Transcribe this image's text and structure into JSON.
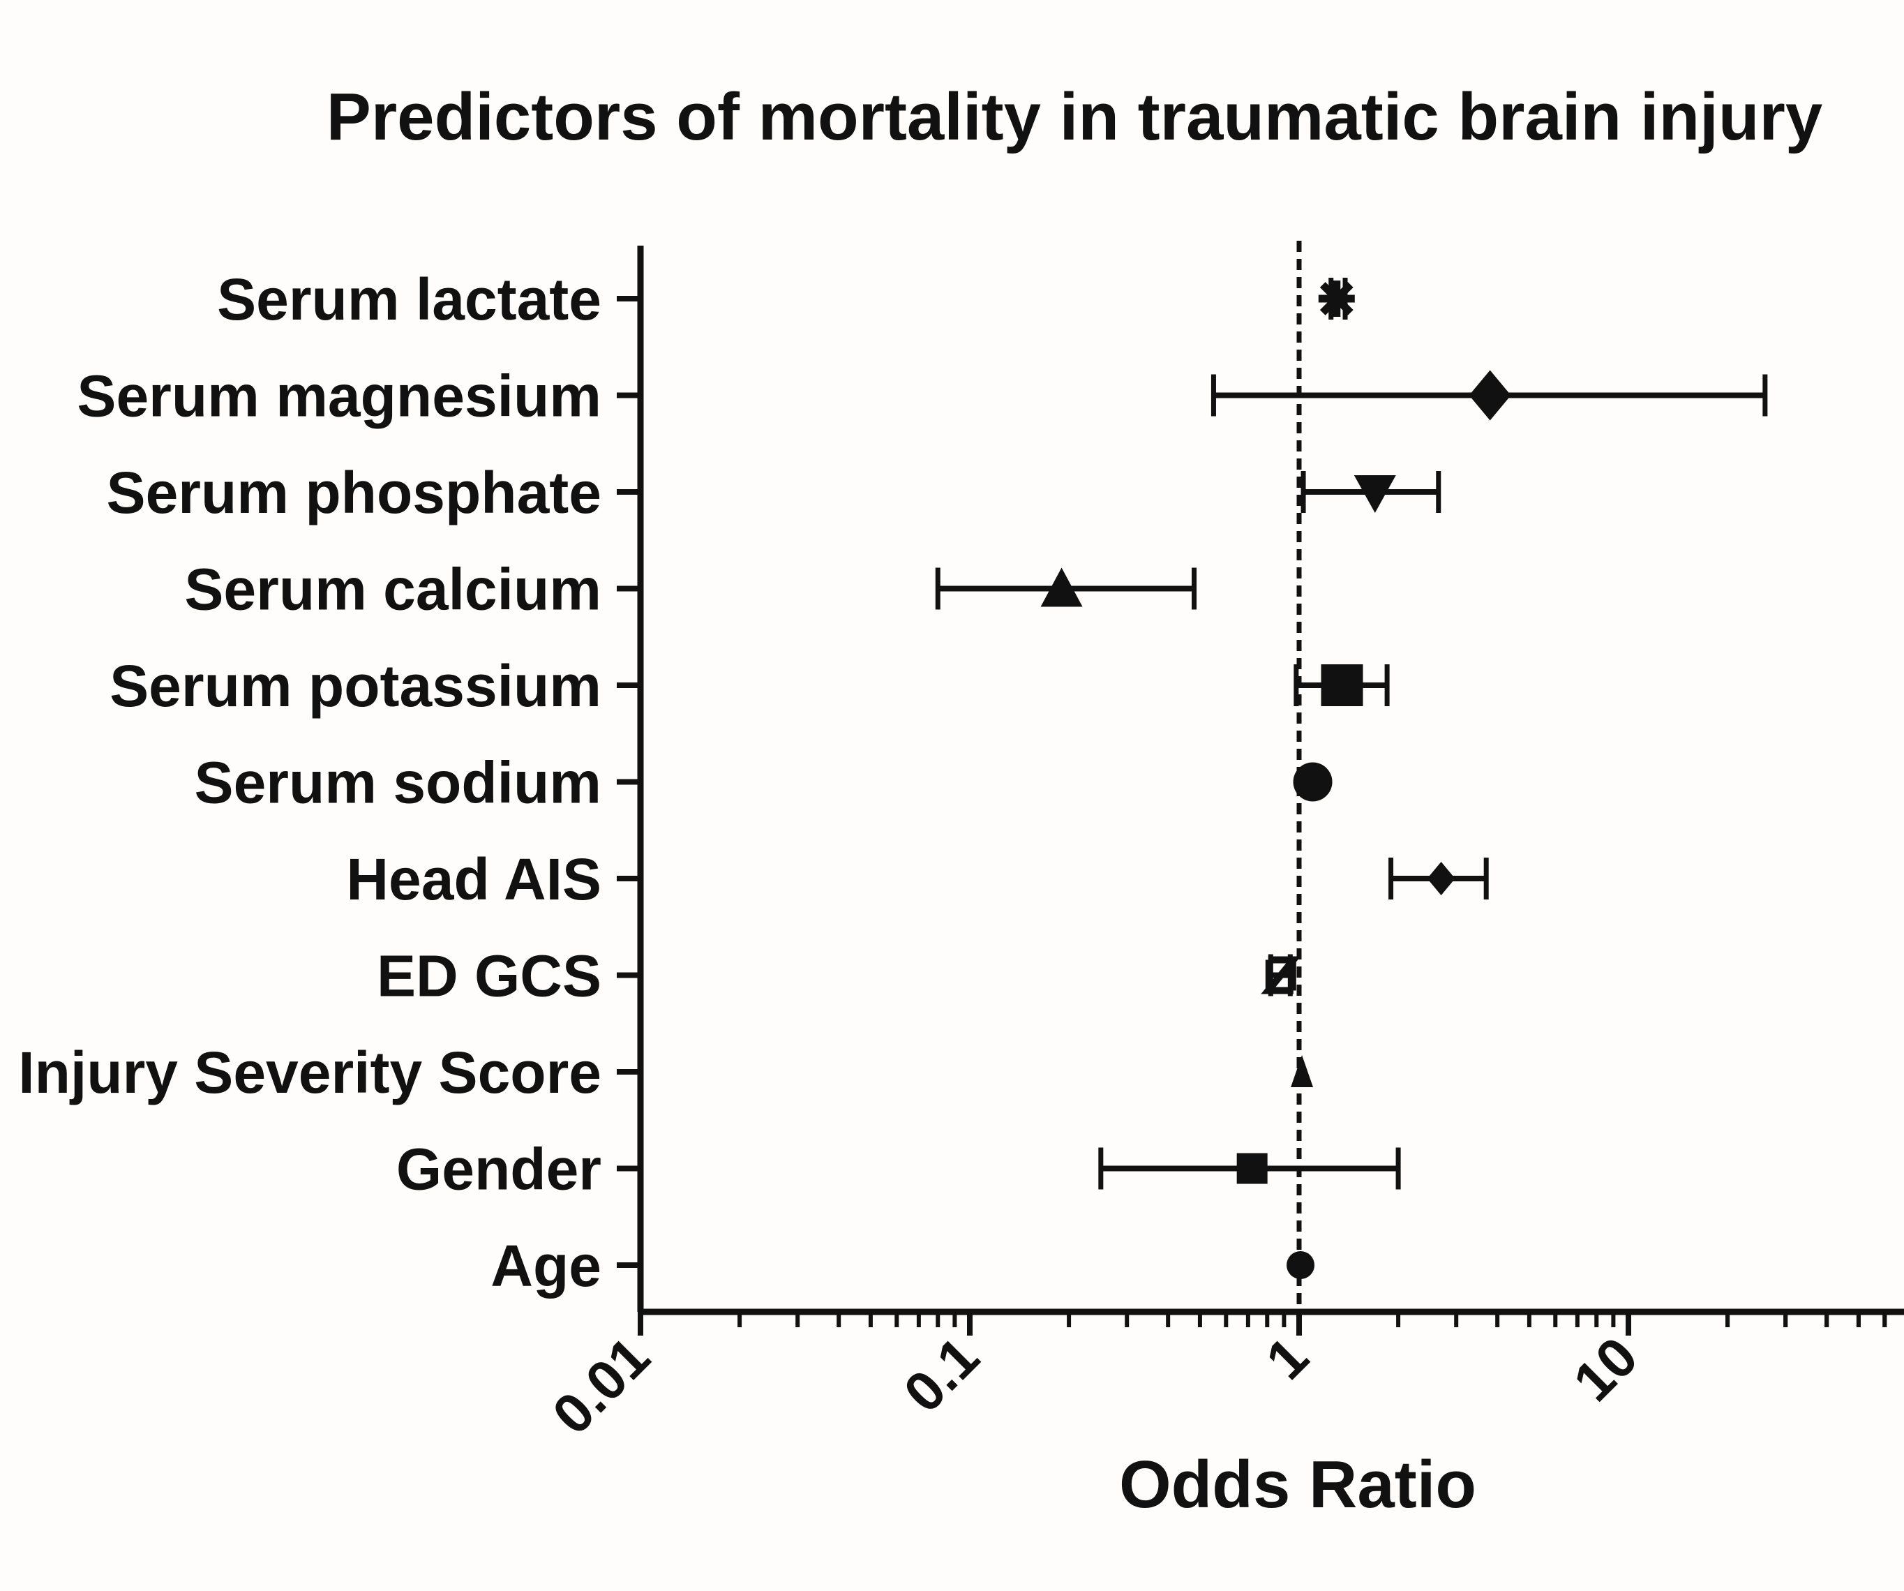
{
  "chart_data": {
    "type": "forest",
    "title": "Predictors of mortality in traumatic brain injury",
    "xlabel": "Odds Ratio",
    "xscale": "log",
    "xlim": [
      0.01,
      60
    ],
    "xticks": [
      "0.01",
      "0.1",
      "1",
      "10"
    ],
    "reference_line": 1,
    "series": [
      {
        "label": "Serum lactate",
        "or": 1.3,
        "ci_low": 1.25,
        "ci_high": 1.38,
        "marker": "star"
      },
      {
        "label": "Serum magnesium",
        "or": 3.8,
        "ci_low": 0.55,
        "ci_high": 26,
        "marker": "diamond"
      },
      {
        "label": "Serum phosphate",
        "or": 1.7,
        "ci_low": 1.03,
        "ci_high": 2.65,
        "marker": "triangle-down"
      },
      {
        "label": "Serum calcium",
        "or": 0.19,
        "ci_low": 0.08,
        "ci_high": 0.48,
        "marker": "triangle-up"
      },
      {
        "label": "Serum potassium",
        "or": 1.35,
        "ci_low": 0.98,
        "ci_high": 1.85,
        "marker": "square"
      },
      {
        "label": "Serum sodium",
        "or": 1.1,
        "ci_low": 1.07,
        "ci_high": 1.13,
        "marker": "circle"
      },
      {
        "label": "Head AIS",
        "or": 2.7,
        "ci_low": 1.9,
        "ci_high": 3.7,
        "marker": "diamond-small"
      },
      {
        "label": "ED GCS",
        "or": 0.88,
        "ci_low": 0.82,
        "ci_high": 0.94,
        "marker": "hourglass"
      },
      {
        "label": "Injury Severity Score",
        "or": 1.02,
        "ci_low": 1.0,
        "ci_high": 1.04,
        "marker": "triangle-small"
      },
      {
        "label": "Gender",
        "or": 0.72,
        "ci_low": 0.25,
        "ci_high": 2.0,
        "marker": "square-small"
      },
      {
        "label": "Age",
        "or": 1.01,
        "ci_low": 0.99,
        "ci_high": 1.03,
        "marker": "circle-small"
      }
    ]
  }
}
